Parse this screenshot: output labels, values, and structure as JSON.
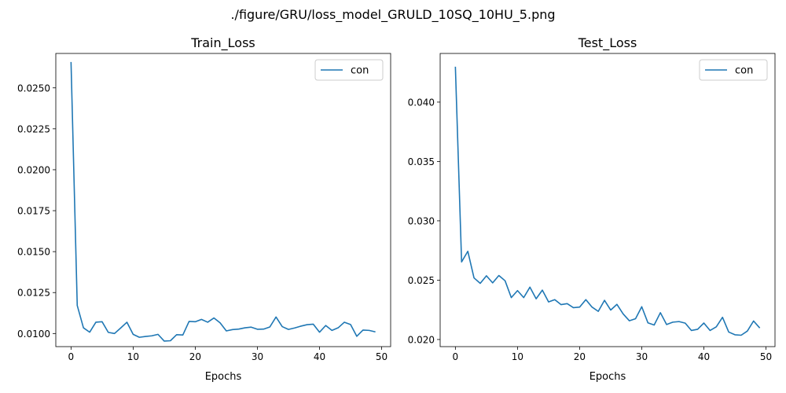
{
  "figure": {
    "suptitle": "./figure/GRU/loss_model_GRULD_10SQ_10HU_5.png"
  },
  "chart_data": [
    {
      "type": "line",
      "title": "Train_Loss",
      "xlabel": "Epochs",
      "ylabel": "",
      "xlim": [
        -2.45,
        51.45
      ],
      "ylim": [
        0.0092,
        0.0271
      ],
      "xticks": [
        0,
        10,
        20,
        30,
        40,
        50
      ],
      "yticks": [
        0.01,
        0.0125,
        0.015,
        0.0175,
        0.02,
        0.0225,
        0.025
      ],
      "ytick_labels": [
        "0.0100",
        "0.0125",
        "0.0150",
        "0.0175",
        "0.0200",
        "0.0225",
        "0.0250"
      ],
      "legend": {
        "placement": "upper right"
      },
      "series": [
        {
          "name": "con",
          "color": "#1f77b4",
          "x": [
            0,
            1,
            2,
            3,
            4,
            5,
            6,
            7,
            8,
            9,
            10,
            11,
            12,
            13,
            14,
            15,
            16,
            17,
            18,
            19,
            20,
            21,
            22,
            23,
            24,
            25,
            26,
            27,
            28,
            29,
            30,
            31,
            32,
            33,
            34,
            35,
            36,
            37,
            38,
            39,
            40,
            41,
            42,
            43,
            44,
            45,
            46,
            47,
            48,
            49
          ],
          "y": [
            0.02658,
            0.01171,
            0.01035,
            0.01008,
            0.01069,
            0.01072,
            0.01007,
            0.01,
            0.01034,
            0.01069,
            0.00995,
            0.00977,
            0.00982,
            0.00986,
            0.00995,
            0.00954,
            0.00956,
            0.00993,
            0.00991,
            0.01074,
            0.01072,
            0.01086,
            0.01069,
            0.01095,
            0.01065,
            0.01016,
            0.01024,
            0.01027,
            0.01035,
            0.01039,
            0.01026,
            0.01027,
            0.0104,
            0.01101,
            0.01042,
            0.01025,
            0.01034,
            0.01045,
            0.01054,
            0.01057,
            0.01008,
            0.01049,
            0.01019,
            0.01035,
            0.01069,
            0.01055,
            0.00983,
            0.01021,
            0.01019,
            0.0101
          ]
        }
      ]
    },
    {
      "type": "line",
      "title": "Test_Loss",
      "xlabel": "Epochs",
      "ylabel": "",
      "xlim": [
        -2.45,
        51.45
      ],
      "ylim": [
        0.0194,
        0.0441
      ],
      "xticks": [
        0,
        10,
        20,
        30,
        40,
        50
      ],
      "yticks": [
        0.02,
        0.025,
        0.03,
        0.035,
        0.04
      ],
      "ytick_labels": [
        "0.020",
        "0.025",
        "0.030",
        "0.035",
        "0.040"
      ],
      "legend": {
        "placement": "upper right"
      },
      "series": [
        {
          "name": "con",
          "color": "#1f77b4",
          "x": [
            0,
            1,
            2,
            3,
            4,
            5,
            6,
            7,
            8,
            9,
            10,
            11,
            12,
            13,
            14,
            15,
            16,
            17,
            18,
            19,
            20,
            21,
            22,
            23,
            24,
            25,
            26,
            27,
            28,
            29,
            30,
            31,
            32,
            33,
            34,
            35,
            36,
            37,
            38,
            39,
            40,
            41,
            42,
            43,
            44,
            45,
            46,
            47,
            48,
            49
          ],
          "y": [
            0.04298,
            0.02654,
            0.02743,
            0.02519,
            0.02473,
            0.02537,
            0.02477,
            0.02539,
            0.02495,
            0.02353,
            0.02412,
            0.02353,
            0.02441,
            0.02343,
            0.02416,
            0.02317,
            0.02336,
            0.02294,
            0.02302,
            0.02268,
            0.02273,
            0.02336,
            0.02273,
            0.02237,
            0.0233,
            0.02248,
            0.02296,
            0.02216,
            0.02158,
            0.02175,
            0.02276,
            0.0214,
            0.02122,
            0.02226,
            0.02126,
            0.02146,
            0.02151,
            0.02138,
            0.02076,
            0.02086,
            0.02139,
            0.02076,
            0.02107,
            0.02187,
            0.02063,
            0.0204,
            0.02036,
            0.02071,
            0.02156,
            0.02097
          ]
        }
      ]
    }
  ]
}
